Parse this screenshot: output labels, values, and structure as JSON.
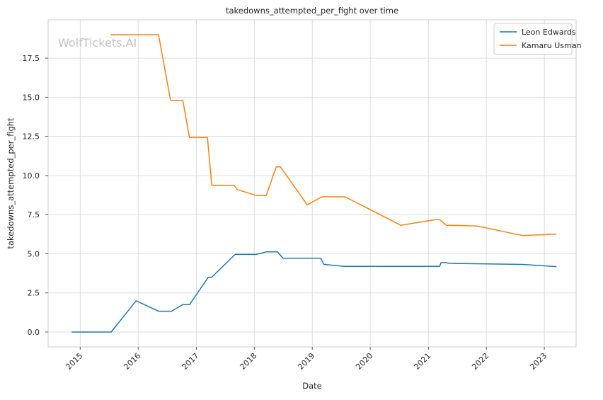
{
  "watermark": "WolfTickets.AI",
  "chart_data": {
    "type": "line",
    "title": "takedowns_attempted_per_fight over time",
    "xlabel": "Date",
    "ylabel": "takedowns_attempted_per_fight",
    "xlim": [
      "2014-06-13",
      "2023-07-20"
    ],
    "ylim": [
      -0.95,
      19.95
    ],
    "grid": true,
    "legend_position": "top-right",
    "x_ticks": [
      {
        "date": "2015-01-01",
        "label": "2015"
      },
      {
        "date": "2016-01-01",
        "label": "2016"
      },
      {
        "date": "2017-01-01",
        "label": "2017"
      },
      {
        "date": "2018-01-01",
        "label": "2018"
      },
      {
        "date": "2019-01-01",
        "label": "2019"
      },
      {
        "date": "2020-01-01",
        "label": "2020"
      },
      {
        "date": "2021-01-01",
        "label": "2021"
      },
      {
        "date": "2022-01-01",
        "label": "2022"
      },
      {
        "date": "2023-01-01",
        "label": "2023"
      }
    ],
    "y_ticks": [
      {
        "value": 0,
        "label": "0.0"
      },
      {
        "value": 2.5,
        "label": "2.5"
      },
      {
        "value": 5,
        "label": "5.0"
      },
      {
        "value": 7.5,
        "label": "7.5"
      },
      {
        "value": 10,
        "label": "10.0"
      },
      {
        "value": 12.5,
        "label": "12.5"
      },
      {
        "value": 15,
        "label": "15.0"
      },
      {
        "value": 17.5,
        "label": "17.5"
      }
    ],
    "series": [
      {
        "name": "Leon Edwards",
        "color": "#1f77b4",
        "points": [
          {
            "x": "2014-11-08",
            "y": 0
          },
          {
            "x": "2015-07-15",
            "y": 0
          },
          {
            "x": "2015-12-19",
            "y": 2.0
          },
          {
            "x": "2016-05-08",
            "y": 1.33
          },
          {
            "x": "2016-07-29",
            "y": 1.33
          },
          {
            "x": "2016-10-08",
            "y": 1.75
          },
          {
            "x": "2016-11-19",
            "y": 1.75
          },
          {
            "x": "2017-03-18",
            "y": 3.5
          },
          {
            "x": "2017-04-08",
            "y": 3.5
          },
          {
            "x": "2017-09-02",
            "y": 4.96
          },
          {
            "x": "2018-01-14",
            "y": 4.96
          },
          {
            "x": "2018-03-17",
            "y": 5.12
          },
          {
            "x": "2018-05-27",
            "y": 5.12
          },
          {
            "x": "2018-07-01",
            "y": 4.72
          },
          {
            "x": "2019-02-23",
            "y": 4.72
          },
          {
            "x": "2019-03-16",
            "y": 4.32
          },
          {
            "x": "2019-07-20",
            "y": 4.2
          },
          {
            "x": "2021-03-13",
            "y": 4.2
          },
          {
            "x": "2021-03-22",
            "y": 4.44
          },
          {
            "x": "2021-04-18",
            "y": 4.44
          },
          {
            "x": "2021-05-15",
            "y": 4.39
          },
          {
            "x": "2022-08-20",
            "y": 4.32
          },
          {
            "x": "2023-03-18",
            "y": 4.18
          }
        ]
      },
      {
        "name": "Kamaru Usman",
        "color": "#ff7f0e",
        "points": [
          {
            "x": "2015-07-12",
            "y": 19.0
          },
          {
            "x": "2016-05-08",
            "y": 19.0
          },
          {
            "x": "2016-07-23",
            "y": 14.8
          },
          {
            "x": "2016-10-08",
            "y": 14.8
          },
          {
            "x": "2016-11-19",
            "y": 12.43
          },
          {
            "x": "2017-03-12",
            "y": 12.43
          },
          {
            "x": "2017-04-08",
            "y": 9.38
          },
          {
            "x": "2017-08-26",
            "y": 9.38
          },
          {
            "x": "2017-09-16",
            "y": 9.1
          },
          {
            "x": "2018-01-14",
            "y": 8.72
          },
          {
            "x": "2018-03-17",
            "y": 8.72
          },
          {
            "x": "2018-05-19",
            "y": 10.55
          },
          {
            "x": "2018-06-15",
            "y": 10.55
          },
          {
            "x": "2018-11-30",
            "y": 8.13
          },
          {
            "x": "2019-03-02",
            "y": 8.64
          },
          {
            "x": "2019-07-27",
            "y": 8.64
          },
          {
            "x": "2020-07-11",
            "y": 6.82
          },
          {
            "x": "2021-02-13",
            "y": 7.18
          },
          {
            "x": "2021-03-13",
            "y": 7.18
          },
          {
            "x": "2021-04-24",
            "y": 6.82
          },
          {
            "x": "2021-11-06",
            "y": 6.77
          },
          {
            "x": "2022-08-20",
            "y": 6.16
          },
          {
            "x": "2023-03-18",
            "y": 6.26
          }
        ]
      }
    ]
  }
}
